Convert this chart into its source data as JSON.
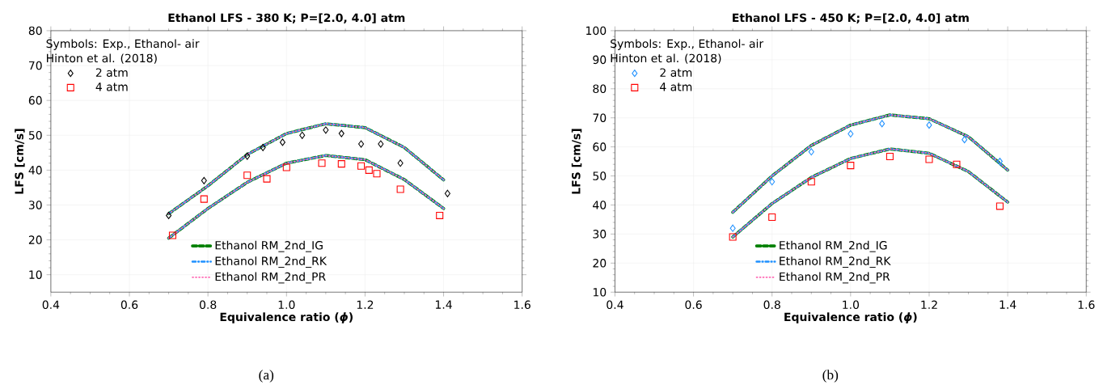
{
  "chart_data": [
    {
      "type": "scatter",
      "title": "Ethanol LFS - 380 K; P=[2.0, 4.0] atm",
      "xlabel": "Equivalence ratio (*ϕ*)",
      "ylabel": "LFS [cm/s]",
      "legend_title": "Symbols: Exp., Ethanol- air",
      "annotations": [
        "Hinton et al. (2018)",
        "(a)"
      ],
      "xlim": [
        0.4,
        1.6
      ],
      "xticks": [
        0.4,
        0.6,
        0.8,
        {
          "value": 1.0,
          "label": "1.0"
        },
        1.2,
        1.4,
        1.6
      ],
      "ylim": [
        5,
        80
      ],
      "yticks": [
        10,
        20,
        30,
        40,
        50,
        60,
        70,
        80
      ],
      "grid": true,
      "legend": "bottom",
      "series": [
        {
          "name": "2 atm",
          "marker": "diamond",
          "color": "#000000",
          "x": [
            0.7,
            0.79,
            0.9,
            0.94,
            0.99,
            1.04,
            1.1,
            1.14,
            1.19,
            1.24,
            1.29,
            1.41
          ],
          "values": [
            27,
            37,
            44,
            46.5,
            48,
            50,
            51.5,
            50.5,
            47.5,
            47.5,
            42,
            33.3
          ]
        },
        {
          "name": "4 atm",
          "marker": "square",
          "color": "#ff0000",
          "x": [
            0.71,
            0.79,
            0.9,
            0.95,
            1.0,
            1.09,
            1.14,
            1.19,
            1.21,
            1.23,
            1.29,
            1.39
          ],
          "values": [
            21.3,
            31.7,
            38.5,
            37.5,
            40.8,
            42,
            41.8,
            41.2,
            40,
            39,
            34.5,
            27
          ]
        },
        {
          "name": "Ethanol RM_2nd_IG",
          "type": "line",
          "line_style": "dashed",
          "color": "#008000",
          "x": [
            0.7,
            0.8,
            0.9,
            1.0,
            1.1,
            1.2,
            1.3,
            1.4
          ],
          "values": [
            27.5,
            35.5,
            44.5,
            50.5,
            53.3,
            52.2,
            46.5,
            37.2
          ]
        },
        {
          "name": "Ethanol RM_2nd_RK",
          "type": "line",
          "line_style": "dashdot",
          "color": "#1e90ff",
          "x": [
            0.7,
            0.8,
            0.9,
            1.0,
            1.1,
            1.2,
            1.3,
            1.4
          ],
          "values": [
            27.5,
            35.5,
            44.5,
            50.5,
            53.3,
            52.2,
            46.5,
            37.2
          ]
        },
        {
          "name": "Ethanol RM_2nd_PR",
          "type": "line",
          "line_style": "dotted",
          "color": "#ff69b4",
          "x": [
            0.7,
            0.8,
            0.9,
            1.0,
            1.1,
            1.2,
            1.3,
            1.4
          ],
          "values": [
            27.5,
            35.5,
            44.5,
            50.5,
            53.3,
            52.2,
            46.5,
            37.2
          ]
        },
        {
          "type": "line",
          "line_style": "dashed",
          "color": "#008000",
          "x": [
            0.7,
            0.8,
            0.9,
            1.0,
            1.1,
            1.2,
            1.3,
            1.4
          ],
          "values": [
            20.5,
            29,
            36.5,
            42,
            44.2,
            43,
            37.3,
            29
          ]
        },
        {
          "type": "line",
          "line_style": "dashdot",
          "color": "#1e90ff",
          "x": [
            0.7,
            0.8,
            0.9,
            1.0,
            1.1,
            1.2,
            1.3,
            1.4
          ],
          "values": [
            20.5,
            29,
            36.5,
            42,
            44.2,
            43,
            37.3,
            29
          ]
        },
        {
          "type": "line",
          "line_style": "dotted",
          "color": "#ff69b4",
          "x": [
            0.7,
            0.8,
            0.9,
            1.0,
            1.1,
            1.2,
            1.3,
            1.4
          ],
          "values": [
            20.5,
            29,
            36.5,
            42,
            44.2,
            43,
            37.3,
            29
          ]
        }
      ]
    },
    {
      "type": "scatter",
      "title": "Ethanol LFS - 450 K; P=[2.0, 4.0] atm",
      "xlabel": "Equivalence ratio (*ϕ*)",
      "ylabel": "LFS [cm/s]",
      "legend_title": "Symbols: Exp., Ethanol- air",
      "annotations": [
        "Hinton et al. (2018)",
        "(b)"
      ],
      "xlim": [
        0.4,
        1.6
      ],
      "xticks": [
        0.4,
        0.6,
        0.8,
        {
          "value": 1.0,
          "label": "1.0"
        },
        1.2,
        1.4,
        1.6
      ],
      "ylim": [
        10,
        100
      ],
      "yticks": [
        10,
        20,
        30,
        40,
        50,
        60,
        70,
        80,
        90,
        100
      ],
      "grid": true,
      "legend": "bottom",
      "series": [
        {
          "name": "2 atm",
          "marker": "diamond",
          "color": "#1e90ff",
          "x": [
            0.7,
            0.8,
            0.9,
            1.0,
            1.08,
            1.2,
            1.29,
            1.38
          ],
          "values": [
            32,
            48,
            58.3,
            64.5,
            68,
            67.5,
            62.5,
            55
          ]
        },
        {
          "name": "4 atm",
          "marker": "square",
          "color": "#ff0000",
          "x": [
            0.7,
            0.8,
            0.9,
            1.0,
            1.1,
            1.2,
            1.27,
            1.38
          ],
          "values": [
            29,
            35.8,
            48,
            53.6,
            56.7,
            55.7,
            54,
            39.6
          ]
        },
        {
          "name": "Ethanol RM_2nd_IG",
          "type": "line",
          "line_style": "dashed",
          "color": "#008000",
          "x": [
            0.7,
            0.8,
            0.9,
            1.0,
            1.1,
            1.2,
            1.3,
            1.4
          ],
          "values": [
            37.5,
            50,
            60.5,
            67.5,
            71,
            69.7,
            63.5,
            52
          ]
        },
        {
          "name": "Ethanol RM_2nd_RK",
          "type": "line",
          "line_style": "dashdot",
          "color": "#1e90ff",
          "x": [
            0.7,
            0.8,
            0.9,
            1.0,
            1.1,
            1.2,
            1.3,
            1.4
          ],
          "values": [
            37.5,
            50,
            60.5,
            67.5,
            71,
            69.7,
            63.5,
            52
          ]
        },
        {
          "name": "Ethanol RM_2nd_PR",
          "type": "line",
          "line_style": "dotted",
          "color": "#ff69b4",
          "x": [
            0.7,
            0.8,
            0.9,
            1.0,
            1.1,
            1.2,
            1.3,
            1.4
          ],
          "values": [
            37.5,
            50,
            60.5,
            67.5,
            71,
            69.7,
            63.5,
            52
          ]
        },
        {
          "type": "line",
          "line_style": "dashed",
          "color": "#008000",
          "x": [
            0.7,
            0.8,
            0.9,
            1.0,
            1.1,
            1.2,
            1.3,
            1.4
          ],
          "values": [
            29,
            40.5,
            49.5,
            56,
            59.3,
            57.8,
            51.5,
            41
          ]
        },
        {
          "type": "line",
          "line_style": "dashdot",
          "color": "#1e90ff",
          "x": [
            0.7,
            0.8,
            0.9,
            1.0,
            1.1,
            1.2,
            1.3,
            1.4
          ],
          "values": [
            29,
            40.5,
            49.5,
            56,
            59.3,
            57.8,
            51.5,
            41
          ]
        },
        {
          "type": "line",
          "line_style": "dotted",
          "color": "#ff69b4",
          "x": [
            0.7,
            0.8,
            0.9,
            1.0,
            1.1,
            1.2,
            1.3,
            1.4
          ],
          "values": [
            29,
            40.5,
            49.5,
            56,
            59.3,
            57.8,
            51.5,
            41
          ]
        }
      ]
    }
  ]
}
